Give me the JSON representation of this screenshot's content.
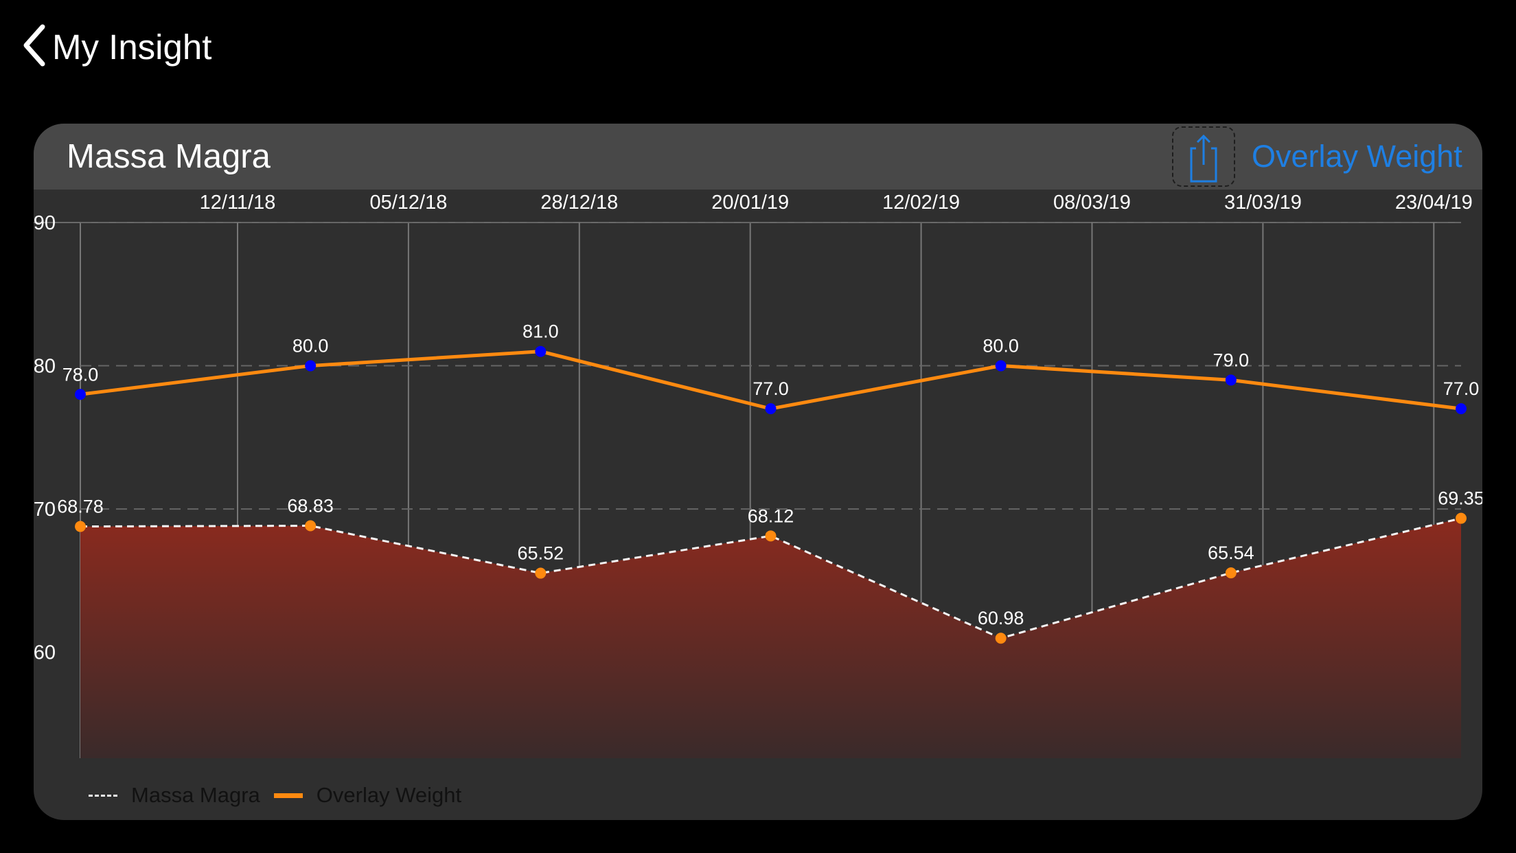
{
  "nav": {
    "back_label": "My Insight"
  },
  "card": {
    "title": "Massa Magra",
    "overlay_label": "Overlay Weight",
    "share_icon": "share-icon"
  },
  "colors": {
    "background": "#000000",
    "card": "#2f2f2f",
    "header": "#484848",
    "accent": "#1e7fe3",
    "weight_line": "#ff8a10",
    "weight_point": "#0000ff",
    "massa_point": "#ff8a10",
    "area_top": "#8b2a1e",
    "area_bottom": "#3a2a2a"
  },
  "chart_data": {
    "type": "line",
    "x_tick_labels": [
      "12/11/18",
      "05/12/18",
      "28/12/18",
      "20/01/19",
      "12/02/19",
      "08/03/19",
      "31/03/19",
      "23/04/19"
    ],
    "y_ticks": [
      60,
      70,
      80,
      90
    ],
    "ylim": [
      52.6,
      90
    ],
    "grid": true,
    "legend_position": "bottom-left",
    "series": [
      {
        "name": "Massa Magra",
        "style": "dashed-area",
        "values": [
          68.78,
          68.83,
          65.52,
          68.12,
          60.98,
          65.54,
          69.35
        ],
        "labels": [
          "68.78",
          "68.83",
          "65.52",
          "68.12",
          "60.98",
          "65.54",
          "69.35"
        ]
      },
      {
        "name": "Overlay Weight",
        "style": "solid",
        "values": [
          78.0,
          80.0,
          81.0,
          77.0,
          80.0,
          79.0,
          77.0
        ],
        "labels": [
          "78.0",
          "80.0",
          "81.0",
          "77.0",
          "80.0",
          "79.0",
          "77.0"
        ]
      }
    ]
  }
}
